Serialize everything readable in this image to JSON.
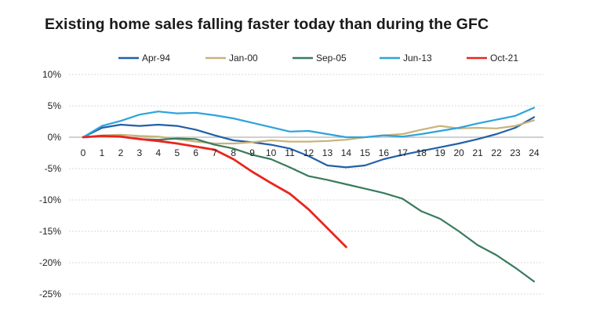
{
  "chart_data": {
    "type": "line",
    "title": "Existing home sales falling faster today than during the GFC",
    "xlabel": "",
    "ylabel": "",
    "x": [
      0,
      1,
      2,
      3,
      4,
      5,
      6,
      7,
      8,
      9,
      10,
      11,
      12,
      13,
      14,
      15,
      16,
      17,
      18,
      19,
      20,
      21,
      22,
      23,
      24
    ],
    "x_tick_labels": [
      "0",
      "1",
      "2",
      "3",
      "4",
      "5",
      "6",
      "7",
      "8",
      "9",
      "10",
      "11",
      "12",
      "13",
      "14",
      "15",
      "16",
      "17",
      "18",
      "19",
      "20",
      "21",
      "22",
      "23",
      "24"
    ],
    "y_ticks": [
      10,
      5,
      0,
      -5,
      -10,
      -15,
      -20,
      -25
    ],
    "y_tick_labels": [
      "10%",
      "5%",
      "0%",
      "-5%",
      "-10%",
      "-15%",
      "-20%",
      "-25%"
    ],
    "ylim": [
      -25,
      10
    ],
    "xlim": [
      0,
      24
    ],
    "legend_position": "top",
    "series": [
      {
        "name": "Apr-94",
        "color": "#2160a8",
        "values": [
          0,
          1.5,
          2.0,
          1.8,
          2.0,
          1.8,
          1.2,
          0.3,
          -0.5,
          -0.8,
          -1.2,
          -1.8,
          -3.0,
          -4.5,
          -4.8,
          -4.5,
          -3.5,
          -2.8,
          -2.2,
          -1.6,
          -1.0,
          -0.3,
          0.5,
          1.5,
          3.2
        ]
      },
      {
        "name": "Jan-00",
        "color": "#c8b37a",
        "values": [
          0,
          0.3,
          0.4,
          0.2,
          0.1,
          -0.3,
          -0.7,
          -1.0,
          -1.0,
          -0.8,
          -0.5,
          -0.7,
          -0.7,
          -0.6,
          -0.4,
          0.0,
          0.3,
          0.5,
          1.2,
          1.8,
          1.4,
          1.5,
          1.4,
          1.8,
          2.7
        ]
      },
      {
        "name": "Sep-05",
        "color": "#3a7a5c",
        "values": [
          0,
          0.2,
          0.1,
          -0.3,
          -0.4,
          -0.2,
          -0.3,
          -1.2,
          -1.8,
          -2.8,
          -3.5,
          -4.8,
          -6.2,
          -6.8,
          -7.5,
          -8.2,
          -8.9,
          -9.8,
          -11.8,
          -13.0,
          -15.0,
          -17.2,
          -18.8,
          -20.8,
          -23.0
        ]
      },
      {
        "name": "Jun-13",
        "color": "#2ea3dc",
        "values": [
          0,
          1.8,
          2.6,
          3.6,
          4.1,
          3.8,
          3.9,
          3.5,
          3.0,
          2.3,
          1.6,
          0.9,
          1.0,
          0.5,
          0.0,
          0.0,
          0.3,
          0.1,
          0.5,
          1.0,
          1.5,
          2.2,
          2.8,
          3.4,
          4.7
        ]
      },
      {
        "name": "Oct-21",
        "color": "#e8261f",
        "values": [
          0,
          0.2,
          0.1,
          -0.3,
          -0.6,
          -1.0,
          -1.5,
          -2.0,
          -3.5,
          -5.5,
          -7.3,
          -9.0,
          -11.5,
          -14.5,
          -17.5,
          null,
          null,
          null,
          null,
          null,
          null,
          null,
          null,
          null,
          null
        ]
      }
    ]
  }
}
